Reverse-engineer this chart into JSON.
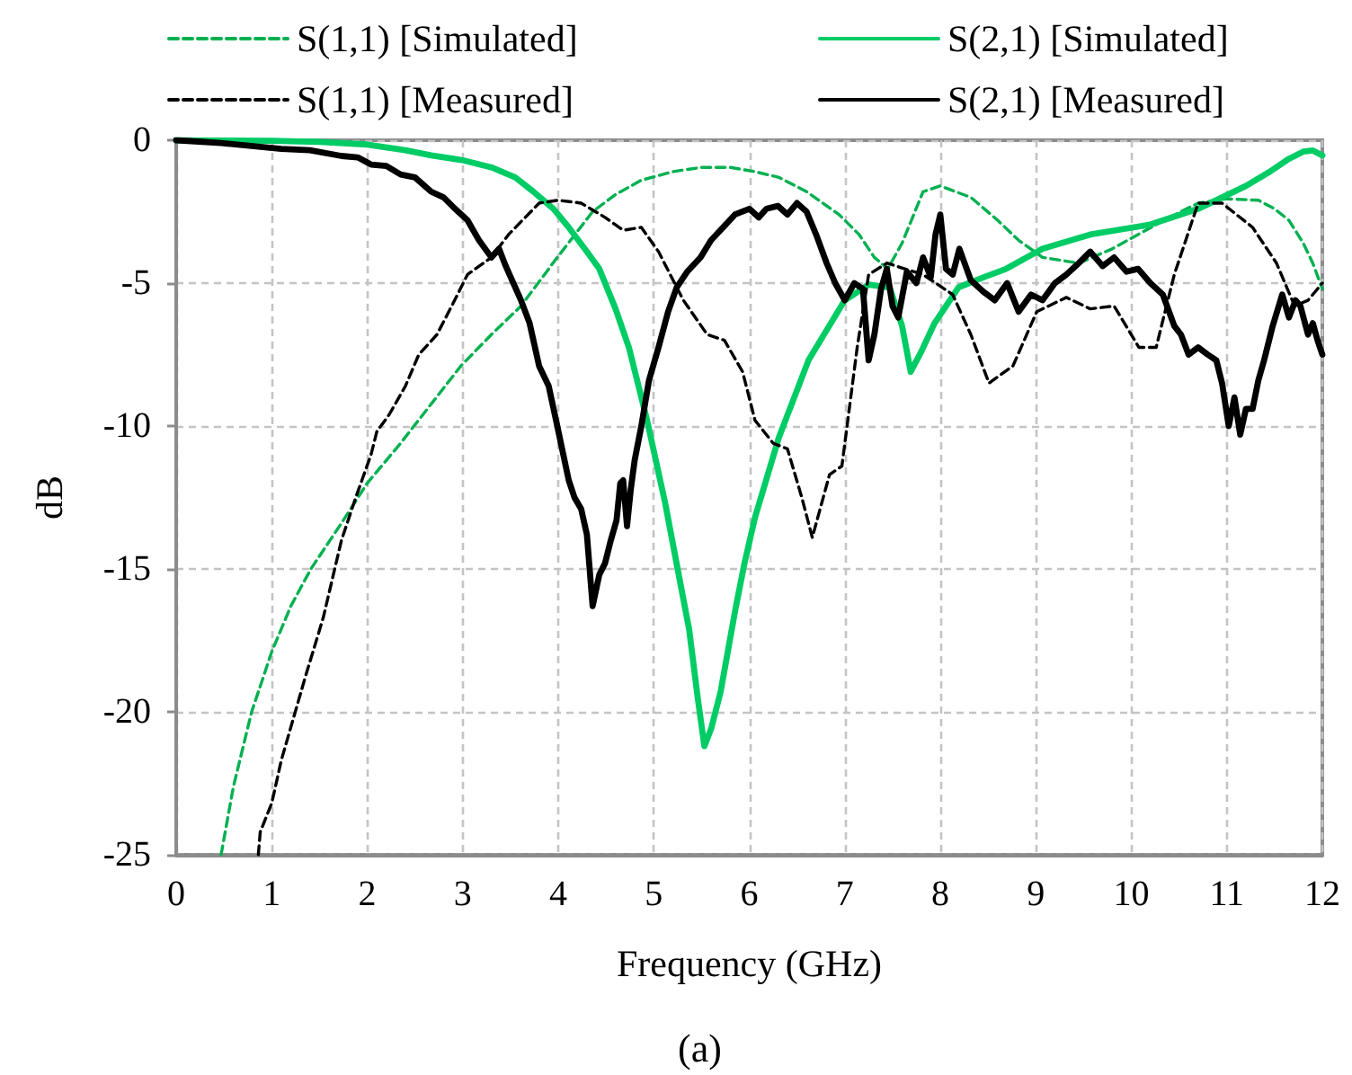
{
  "chart_data": {
    "type": "line",
    "xlabel": "Frequency (GHz)",
    "ylabel": "dB",
    "annotations": [
      "(a)"
    ],
    "xlim": [
      0,
      12
    ],
    "xticks": [
      0,
      1,
      2,
      3,
      4,
      5,
      6,
      7,
      8,
      9,
      10,
      11,
      12
    ],
    "ylim": [
      -25,
      0
    ],
    "yticks": [
      0,
      -5,
      -10,
      -15,
      -20,
      -25
    ],
    "grid": true,
    "legend": "top",
    "series": [
      {
        "name": "S(1,1) [Simulated]",
        "color": "#00b050",
        "line_style": "dashed",
        "x": [
          0.47,
          0.6,
          0.79,
          1.0,
          1.2,
          1.41,
          1.73,
          2.0,
          2.35,
          2.7,
          2.98,
          3.3,
          3.61,
          3.99,
          4.36,
          4.6,
          4.87,
          5.2,
          5.5,
          5.8,
          6.06,
          6.31,
          6.6,
          6.94,
          7.15,
          7.31,
          7.45,
          7.6,
          7.82,
          8.0,
          8.32,
          8.6,
          8.82,
          9.07,
          9.45,
          9.8,
          10.07,
          10.4,
          10.7,
          11.0,
          11.33,
          11.5,
          11.65,
          11.8,
          11.9,
          12.0
        ],
        "values": [
          -25,
          -22.6,
          -20,
          -17.9,
          -16.3,
          -15.0,
          -13.4,
          -12.0,
          -10.6,
          -9.1,
          -7.9,
          -6.8,
          -5.8,
          -4.1,
          -2.5,
          -1.9,
          -1.4,
          -1.1,
          -0.95,
          -0.95,
          -1.1,
          -1.3,
          -1.8,
          -2.6,
          -3.3,
          -4.1,
          -4.5,
          -3.6,
          -1.8,
          -1.6,
          -2.0,
          -2.8,
          -3.5,
          -4.1,
          -4.3,
          -3.8,
          -3.3,
          -2.7,
          -2.2,
          -2.05,
          -2.1,
          -2.4,
          -2.8,
          -3.6,
          -4.3,
          -5.2
        ]
      },
      {
        "name": "S(2,1) [Simulated]",
        "color": "#00cc66",
        "line_style": "solid",
        "x": [
          0,
          1,
          1.5,
          2.0,
          2.4,
          2.67,
          3.0,
          3.3,
          3.55,
          3.74,
          3.95,
          4.11,
          4.3,
          4.43,
          4.6,
          4.74,
          4.93,
          5.12,
          5.25,
          5.37,
          5.46,
          5.53,
          5.6,
          5.7,
          5.85,
          5.95,
          6.06,
          6.31,
          6.62,
          7.0,
          7.25,
          7.47,
          7.6,
          7.69,
          7.8,
          7.94,
          8.19,
          8.45,
          8.69,
          9.07,
          9.57,
          10.2,
          10.7,
          11.2,
          11.45,
          11.65,
          11.8,
          11.9,
          12.0
        ],
        "values": [
          0,
          -0.02,
          -0.06,
          -0.15,
          -0.35,
          -0.53,
          -0.7,
          -0.95,
          -1.3,
          -1.8,
          -2.4,
          -3.05,
          -3.9,
          -4.5,
          -5.9,
          -7.25,
          -9.8,
          -12.7,
          -15.0,
          -17.1,
          -19.5,
          -21.2,
          -20.6,
          -19.3,
          -16.5,
          -14.8,
          -13.2,
          -10.4,
          -7.7,
          -5.6,
          -5.05,
          -5.15,
          -6.5,
          -8.1,
          -7.4,
          -6.4,
          -5.15,
          -4.8,
          -4.5,
          -3.8,
          -3.3,
          -2.95,
          -2.4,
          -1.6,
          -1.1,
          -0.65,
          -0.4,
          -0.36,
          -0.53
        ]
      },
      {
        "name": "S(1,1) [Measured]",
        "color": "#000000",
        "line_style": "dashed",
        "x": [
          0.86,
          0.88,
          1.0,
          1.1,
          1.35,
          1.54,
          1.73,
          1.88,
          2.04,
          2.1,
          2.23,
          2.4,
          2.54,
          2.73,
          2.9,
          3.05,
          3.3,
          3.48,
          3.8,
          4.0,
          4.24,
          4.49,
          4.68,
          4.87,
          5.05,
          5.31,
          5.56,
          5.74,
          5.93,
          6.06,
          6.25,
          6.4,
          6.55,
          6.66,
          6.84,
          6.97,
          7.13,
          7.25,
          7.44,
          7.82,
          8.13,
          8.32,
          8.51,
          8.76,
          9.01,
          9.32,
          9.57,
          9.82,
          10.08,
          10.26,
          10.45,
          10.7,
          10.95,
          11.27,
          11.52,
          11.71,
          11.85,
          12.0
        ],
        "values": [
          -25,
          -24.2,
          -23.2,
          -21.7,
          -18.8,
          -16.7,
          -14.0,
          -12.5,
          -11.0,
          -10.2,
          -9.6,
          -8.6,
          -7.5,
          -6.8,
          -5.7,
          -4.7,
          -4.1,
          -3.3,
          -2.2,
          -2.1,
          -2.2,
          -2.7,
          -3.15,
          -3.05,
          -3.9,
          -5.6,
          -6.8,
          -7.0,
          -8.1,
          -9.8,
          -10.6,
          -10.8,
          -12.5,
          -13.9,
          -11.7,
          -11.4,
          -7.25,
          -4.7,
          -4.3,
          -4.7,
          -5.4,
          -6.8,
          -8.5,
          -7.9,
          -6.0,
          -5.5,
          -5.9,
          -5.8,
          -7.25,
          -7.25,
          -4.7,
          -2.2,
          -2.2,
          -3.05,
          -4.3,
          -5.8,
          -5.6,
          -5.0
        ]
      },
      {
        "name": "S(2,1) [Measured]",
        "color": "#000000",
        "line_style": "solid",
        "x": [
          0,
          0.47,
          1.1,
          1.4,
          1.73,
          1.9,
          2.04,
          2.2,
          2.35,
          2.5,
          2.67,
          2.8,
          2.92,
          3.05,
          3.17,
          3.3,
          3.38,
          3.45,
          3.61,
          3.7,
          3.8,
          3.9,
          3.99,
          4.11,
          4.17,
          4.24,
          4.3,
          4.36,
          4.43,
          4.49,
          4.55,
          4.61,
          4.65,
          4.68,
          4.72,
          4.76,
          4.8,
          4.87,
          4.95,
          5.05,
          5.15,
          5.24,
          5.35,
          5.49,
          5.6,
          5.74,
          5.85,
          6.0,
          6.1,
          6.18,
          6.3,
          6.4,
          6.5,
          6.6,
          6.7,
          6.81,
          6.9,
          7.0,
          7.1,
          7.19,
          7.25,
          7.31,
          7.38,
          7.44,
          7.5,
          7.56,
          7.65,
          7.75,
          7.82,
          7.9,
          7.95,
          8.0,
          8.06,
          8.13,
          8.2,
          8.32,
          8.45,
          8.57,
          8.7,
          8.82,
          8.95,
          9.07,
          9.2,
          9.32,
          9.45,
          9.57,
          9.7,
          9.82,
          9.95,
          10.07,
          10.2,
          10.33,
          10.45,
          10.52,
          10.6,
          10.7,
          10.8,
          10.89,
          10.95,
          11.02,
          11.08,
          11.14,
          11.2,
          11.27,
          11.33,
          11.39,
          11.48,
          11.58,
          11.65,
          11.72,
          11.77,
          11.85,
          11.9,
          11.95,
          12.0
        ],
        "values": [
          0,
          -0.1,
          -0.3,
          -0.35,
          -0.55,
          -0.6,
          -0.85,
          -0.9,
          -1.2,
          -1.3,
          -1.8,
          -2.0,
          -2.4,
          -2.8,
          -3.5,
          -4.1,
          -3.8,
          -4.4,
          -5.6,
          -6.4,
          -7.9,
          -8.6,
          -10.0,
          -11.9,
          -12.5,
          -12.9,
          -13.8,
          -16.3,
          -15.2,
          -14.8,
          -14.0,
          -13.3,
          -12.0,
          -11.9,
          -13.5,
          -12.2,
          -11.2,
          -10.0,
          -8.4,
          -7.25,
          -6.0,
          -5.15,
          -4.6,
          -4.1,
          -3.5,
          -3.0,
          -2.6,
          -2.4,
          -2.7,
          -2.4,
          -2.3,
          -2.6,
          -2.2,
          -2.5,
          -3.3,
          -4.3,
          -5.0,
          -5.6,
          -5.0,
          -5.2,
          -7.7,
          -6.8,
          -5.2,
          -4.5,
          -5.8,
          -6.2,
          -4.6,
          -5.0,
          -4.1,
          -4.8,
          -3.3,
          -2.6,
          -4.5,
          -4.7,
          -3.8,
          -4.9,
          -5.3,
          -5.6,
          -5.0,
          -6.0,
          -5.4,
          -5.6,
          -5.0,
          -4.7,
          -4.3,
          -3.9,
          -4.4,
          -4.1,
          -4.6,
          -4.5,
          -5.0,
          -5.4,
          -6.5,
          -6.8,
          -7.5,
          -7.25,
          -7.5,
          -7.7,
          -8.5,
          -10.0,
          -9.0,
          -10.3,
          -9.4,
          -9.4,
          -8.4,
          -7.7,
          -6.5,
          -5.4,
          -6.2,
          -5.6,
          -5.8,
          -6.8,
          -6.4,
          -7.0,
          -7.5
        ]
      }
    ]
  }
}
